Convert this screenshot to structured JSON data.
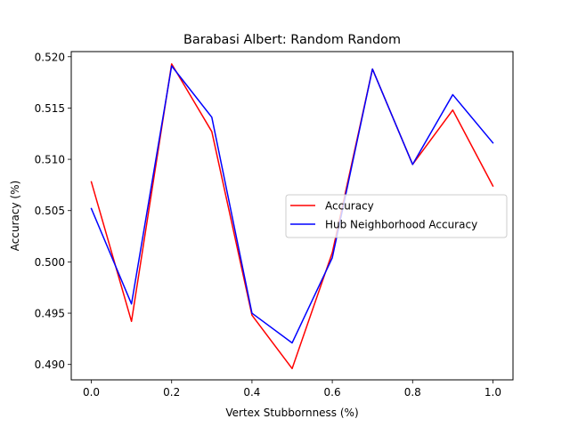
{
  "chart_data": {
    "type": "line",
    "title": "Barabasi Albert: Random Random",
    "xlabel": "Vertex Stubbornness (%)",
    "ylabel": "Accuracy (%)",
    "xlim": [
      -0.05,
      1.05
    ],
    "ylim": [
      0.4885,
      0.5205
    ],
    "x": [
      0.0,
      0.1,
      0.2,
      0.3,
      0.4,
      0.5,
      0.6,
      0.7,
      0.8,
      0.9,
      1.0
    ],
    "x_ticks": [
      "0.0",
      "0.2",
      "0.4",
      "0.6",
      "0.8",
      "1.0"
    ],
    "y_ticks": [
      "0.490",
      "0.495",
      "0.500",
      "0.505",
      "0.510",
      "0.515",
      "0.520"
    ],
    "series": [
      {
        "name": "Accuracy",
        "color": "#ff0000",
        "values": [
          0.5078,
          0.4942,
          0.5193,
          0.5127,
          0.4948,
          0.4896,
          0.5009,
          0.5188,
          0.5095,
          0.5148,
          0.5074
        ]
      },
      {
        "name": "Hub Neighborhood Accuracy",
        "color": "#0000ff",
        "values": [
          0.5052,
          0.4959,
          0.5191,
          0.5141,
          0.495,
          0.4921,
          0.5004,
          0.5188,
          0.5095,
          0.5163,
          0.5116
        ]
      }
    ],
    "legend": "center-right",
    "grid": false
  }
}
